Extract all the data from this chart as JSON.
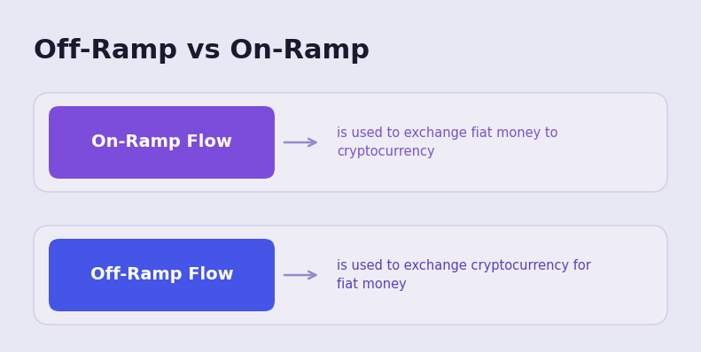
{
  "title": "Off-Ramp vs On-Ramp",
  "title_fontsize": 22,
  "title_color": "#1a1a2e",
  "title_fontweight": "bold",
  "background_color": "#e8e8f4",
  "card_bg_color": "#eeedf6",
  "rows": [
    {
      "label": "On-Ramp Flow",
      "label_color": "#ffffff",
      "box_color": "#7c4ddb",
      "description": "is used to exchange fiat money to\ncryptocurrency",
      "desc_color": "#7755cc"
    },
    {
      "label": "Off-Ramp Flow",
      "label_color": "#ffffff",
      "box_color": "#4455e8",
      "description": "is used to exchange cryptocurrency for\nfiat money",
      "desc_color": "#5544bb"
    }
  ],
  "arrow_color": "#9988cc",
  "figsize": [
    7.91,
    3.98
  ],
  "dpi": 100
}
